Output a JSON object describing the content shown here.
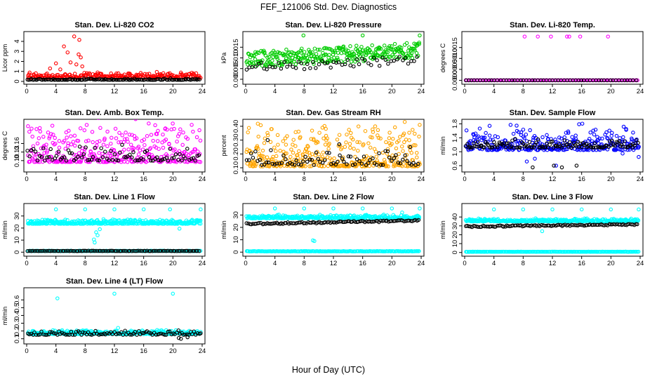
{
  "title": "FEF_121006  Std. Dev. Diagnostics",
  "xlabel": "Hour of Day (UTC)",
  "colors": {
    "red": "#ff0000",
    "green": "#00cc00",
    "magenta": "#ff00ff",
    "orange": "#ffa500",
    "blue": "#0000ff",
    "cyan": "#00ffff",
    "black": "#000000"
  },
  "chart_data": [
    {
      "type": "scatter",
      "title": "Stan. Dev. Li-820 CO2",
      "ylabel": "Licor ppm",
      "xlim": [
        0,
        24
      ],
      "xticks": [
        "0",
        "4",
        "8",
        "12",
        "16",
        "20",
        "24"
      ],
      "ylim": [
        0,
        4.7
      ],
      "yticks": [
        "0",
        "1",
        "2",
        "3",
        "4"
      ],
      "series": [
        {
          "color": "red",
          "gen": {
            "mode": "band",
            "n": 240,
            "base": 0.35,
            "spread": 0.45,
            "seed": 11
          },
          "points": [
            [
              5.1,
              3.5
            ],
            [
              5.6,
              2.9
            ],
            [
              6.5,
              4.5
            ],
            [
              7.2,
              4.15
            ],
            [
              7.1,
              2.7
            ],
            [
              7.4,
              2.4
            ],
            [
              6.0,
              1.9
            ],
            [
              6.8,
              1.7
            ],
            [
              4.0,
              1.8
            ],
            [
              4.6,
              1.2
            ],
            [
              3.2,
              1.3
            ],
            [
              7.6,
              1.5
            ],
            [
              9.7,
              0.9
            ],
            [
              14.0,
              0.8
            ],
            [
              15.6,
              0.85
            ],
            [
              17.8,
              0.95
            ],
            [
              18.2,
              0.7
            ],
            [
              12.8,
              0.6
            ]
          ]
        },
        {
          "color": "black",
          "gen": {
            "mode": "band",
            "n": 130,
            "base": 0.15,
            "spread": 0.12,
            "seed": 12
          }
        }
      ]
    },
    {
      "type": "scatter",
      "title": "Stan. Dev. Li-820 Pressure",
      "ylabel": "kPa",
      "xlim": [
        0,
        24
      ],
      "xticks": [
        "0",
        "4",
        "8",
        "12",
        "16",
        "20",
        "24"
      ],
      "ylim": [
        -0.001,
        0.021
      ],
      "yticks": [
        "0.000",
        "0.005",
        "0.010",
        "0.015"
      ],
      "series": [
        {
          "color": "green",
          "gen": {
            "mode": "trend",
            "n": 320,
            "base": 0.0055,
            "slope": 0.00018,
            "spread": 0.0075,
            "seed": 21
          },
          "points": [
            [
              7.9,
              0.0205
            ],
            [
              16.0,
              0.0205
            ],
            [
              23.8,
              0.0205
            ]
          ]
        },
        {
          "color": "black",
          "gen": {
            "mode": "trend",
            "n": 60,
            "base": 0.0035,
            "slope": 0.00015,
            "spread": 0.004,
            "seed": 22
          }
        }
      ]
    },
    {
      "type": "scatter",
      "title": "Stan. Dev. Li-820 Temp.",
      "ylabel": "degrees C",
      "xlim": [
        0,
        24
      ],
      "xticks": [
        "0",
        "4",
        "8",
        "12",
        "16",
        "20",
        "24"
      ],
      "ylim": [
        -5e-05,
        0.0021
      ],
      "yticks": [
        "0.0000",
        "0.0005",
        "0.0010",
        "0.0015"
      ],
      "series": [
        {
          "color": "magenta",
          "gen": {
            "mode": "flat",
            "n": 120,
            "base": 0.0,
            "spread": 0.0,
            "seed": 31
          },
          "points": [
            [
              8.2,
              0.002
            ],
            [
              10.0,
              0.002
            ],
            [
              11.8,
              0.002
            ],
            [
              14.0,
              0.002
            ],
            [
              14.3,
              0.002
            ],
            [
              15.8,
              0.002
            ],
            [
              19.6,
              0.002
            ]
          ]
        },
        {
          "color": "black",
          "gen": {
            "mode": "flat",
            "n": 60,
            "base": 0.0,
            "spread": 0.0,
            "seed": 32
          }
        }
      ]
    },
    {
      "type": "scatter",
      "title": "Stan. Dev. Amb. Box Temp.",
      "ylabel": "degrees C",
      "xlim": [
        0,
        24
      ],
      "xticks": [
        "0",
        "4",
        "8",
        "12",
        "16",
        "20",
        "24"
      ],
      "ylim": [
        0.07,
        0.235
      ],
      "yticks": [
        "0.10",
        "0.13",
        "0.16"
      ],
      "series": [
        {
          "color": "magenta",
          "gen": {
            "mode": "band",
            "n": 360,
            "base": 0.095,
            "spread": 0.115,
            "seed": 41
          }
        },
        {
          "color": "black",
          "gen": {
            "mode": "band",
            "n": 90,
            "base": 0.1,
            "spread": 0.05,
            "seed": 42
          }
        }
      ]
    },
    {
      "type": "scatter",
      "title": "Stan. Dev. Gas Stream RH",
      "ylabel": "percent",
      "xlim": [
        0,
        24
      ],
      "xticks": [
        "0",
        "4",
        "8",
        "12",
        "16",
        "20",
        "24"
      ],
      "ylim": [
        0.09,
        0.43
      ],
      "yticks": [
        "0.10",
        "0.20",
        "0.30",
        "0.40"
      ],
      "series": [
        {
          "color": "orange",
          "gen": {
            "mode": "band",
            "n": 380,
            "base": 0.11,
            "spread": 0.24,
            "seed": 51
          },
          "points": [
            [
              23.8,
              0.41
            ],
            [
              10.5,
              0.39
            ],
            [
              3.5,
              0.38
            ]
          ]
        },
        {
          "color": "black",
          "gen": {
            "mode": "band",
            "n": 80,
            "base": 0.12,
            "spread": 0.08,
            "seed": 52
          },
          "points": [
            [
              3.0,
              0.3
            ],
            [
              12.8,
              0.27
            ],
            [
              22.5,
              0.25
            ]
          ]
        }
      ]
    },
    {
      "type": "scatter",
      "title": "Stan. Dev. Sample Flow",
      "ylabel": "ml/min",
      "xlim": [
        0,
        24
      ],
      "xticks": [
        "0",
        "4",
        "8",
        "12",
        "16",
        "20",
        "24"
      ],
      "ylim": [
        0.5,
        1.85
      ],
      "yticks": [
        "0.6",
        "1.0",
        "1.4",
        "1.8"
      ],
      "series": [
        {
          "color": "blue",
          "gen": {
            "mode": "band",
            "n": 330,
            "base": 1.05,
            "spread": 0.55,
            "seed": 61
          },
          "points": [
            [
              7.1,
              1.75
            ],
            [
              12.5,
              0.6
            ],
            [
              9.6,
              0.8
            ],
            [
              21.6,
              0.95
            ],
            [
              23.8,
              0.85
            ],
            [
              8.5,
              0.72
            ]
          ]
        },
        {
          "color": "black",
          "gen": {
            "mode": "band",
            "n": 130,
            "base": 1.12,
            "spread": 0.18,
            "seed": 62
          },
          "points": [
            [
              9.3,
              0.55
            ],
            [
              12.2,
              0.6
            ],
            [
              13.3,
              0.55
            ],
            [
              15.3,
              0.6
            ]
          ]
        }
      ]
    },
    {
      "type": "scatter",
      "title": "Stan. Dev. Line 1 Flow",
      "ylabel": "ml/min",
      "xlim": [
        0,
        24
      ],
      "xticks": [
        "0",
        "4",
        "8",
        "12",
        "16",
        "20",
        "24"
      ],
      "ylim": [
        -1,
        38
      ],
      "yticks": [
        "0",
        "10",
        "20",
        "30"
      ],
      "series": [
        {
          "color": "cyan",
          "gen": {
            "mode": "band",
            "n": 380,
            "base": 23.5,
            "spread": 3.0,
            "seed": 71
          },
          "points": [
            [
              4.0,
              35.5
            ],
            [
              8.0,
              35.5
            ],
            [
              12.0,
              35.5
            ],
            [
              16.0,
              35.5
            ],
            [
              19.6,
              35.5
            ],
            [
              23.8,
              35.5
            ],
            [
              9.2,
              10.5
            ],
            [
              9.3,
              8.0
            ],
            [
              9.5,
              16.5
            ],
            [
              9.7,
              14.0
            ],
            [
              10.0,
              19.0
            ],
            [
              20.9,
              19.5
            ]
          ]
        },
        {
          "color": "cyan",
          "gen": {
            "mode": "flat",
            "n": 200,
            "base": 1.0,
            "spread": 0.3,
            "seed": 72
          }
        },
        {
          "color": "black",
          "gen": {
            "mode": "flat",
            "n": 100,
            "base": 1.0,
            "spread": 0.3,
            "seed": 73
          }
        }
      ]
    },
    {
      "type": "scatter",
      "title": "Stan. Dev. Line 2 Flow",
      "ylabel": "ml/min",
      "xlim": [
        0,
        24
      ],
      "xticks": [
        "0",
        "4",
        "8",
        "12",
        "16",
        "20",
        "24"
      ],
      "ylim": [
        -1,
        37
      ],
      "yticks": [
        "0",
        "10",
        "20",
        "30"
      ],
      "series": [
        {
          "color": "cyan",
          "gen": {
            "mode": "band",
            "n": 330,
            "base": 27.3,
            "spread": 2.2,
            "seed": 81
          },
          "points": [
            [
              4.0,
              35.3
            ],
            [
              8.0,
              35.3
            ],
            [
              12.0,
              35.3
            ],
            [
              16.0,
              35.3
            ],
            [
              20.0,
              35.3
            ],
            [
              23.8,
              35.3
            ],
            [
              21.4,
              32.0
            ],
            [
              9.2,
              9.5
            ],
            [
              9.4,
              9.0
            ]
          ]
        },
        {
          "color": "black",
          "gen": {
            "mode": "trend",
            "n": 110,
            "base": 22.2,
            "slope": 0.11,
            "spread": 1.3,
            "seed": 82
          }
        },
        {
          "color": "cyan",
          "gen": {
            "mode": "flat",
            "n": 200,
            "base": 0.7,
            "spread": 0.3,
            "seed": 83
          }
        }
      ]
    },
    {
      "type": "scatter",
      "title": "Stan. Dev. Line 3 Flow",
      "ylabel": "ml/min",
      "xlim": [
        0,
        24
      ],
      "xticks": [
        "0",
        "4",
        "8",
        "12",
        "16",
        "20",
        "24"
      ],
      "ylim": [
        -1,
        52
      ],
      "yticks": [
        "0",
        "10",
        "20",
        "30",
        "40"
      ],
      "series": [
        {
          "color": "cyan",
          "gen": {
            "mode": "band",
            "n": 330,
            "base": 35.0,
            "spread": 2.5,
            "seed": 91
          },
          "points": [
            [
              4.0,
              48.5
            ],
            [
              8.0,
              48.5
            ],
            [
              12.0,
              48.5
            ],
            [
              16.0,
              48.5
            ],
            [
              20.0,
              48.5
            ],
            [
              23.8,
              48.5
            ],
            [
              9.7,
              38.5
            ],
            [
              10.6,
              24.0
            ]
          ]
        },
        {
          "color": "black",
          "gen": {
            "mode": "trend",
            "n": 110,
            "base": 28.5,
            "slope": 0.1,
            "spread": 1.5,
            "seed": 92
          }
        },
        {
          "color": "cyan",
          "gen": {
            "mode": "flat",
            "n": 200,
            "base": 0.8,
            "spread": 0.3,
            "seed": 93
          }
        }
      ]
    },
    {
      "type": "scatter",
      "title": "Stan. Dev. Line 4 (LT) Flow",
      "ylabel": "ml/min",
      "xlim": [
        0,
        24
      ],
      "xticks": [
        "0",
        "4",
        "8",
        "12",
        "16",
        "20",
        "24"
      ],
      "ylim": [
        0.07,
        0.72
      ],
      "yticks": [
        "0.1",
        "0.2",
        "0.3",
        "0.4",
        "0.5",
        "0.6"
      ],
      "series": [
        {
          "color": "cyan",
          "gen": {
            "mode": "band",
            "n": 300,
            "base": 0.16,
            "spread": 0.04,
            "seed": 101
          },
          "points": [
            [
              4.2,
              0.62
            ],
            [
              12.0,
              0.68
            ],
            [
              20.0,
              0.68
            ],
            [
              3.6,
              0.21
            ],
            [
              12.5,
              0.24
            ],
            [
              20.4,
              0.21
            ],
            [
              22.1,
              0.15
            ]
          ]
        },
        {
          "color": "black",
          "gen": {
            "mode": "band",
            "n": 100,
            "base": 0.15,
            "spread": 0.05,
            "seed": 102
          },
          "points": [
            [
              20.8,
              0.11
            ],
            [
              21.1,
              0.1
            ],
            [
              22.0,
              0.12
            ],
            [
              23.8,
              0.17
            ]
          ]
        }
      ]
    }
  ]
}
